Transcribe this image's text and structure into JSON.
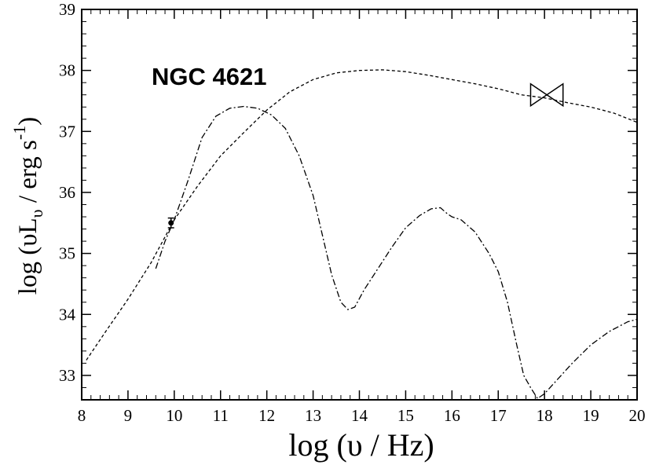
{
  "chart_data": {
    "type": "line",
    "title": "",
    "annotation": "NGC 4621",
    "xlabel": "log  (υ  / Hz)",
    "ylabel": {
      "prefix": "log  (υL",
      "sub": "υ",
      "middle": " / erg s",
      "sup": "-1",
      "suffix": ")"
    },
    "xlim": [
      8,
      20
    ],
    "ylim": [
      32.6,
      39
    ],
    "xticks": [
      8,
      9,
      10,
      11,
      12,
      13,
      14,
      15,
      16,
      17,
      18,
      19,
      20
    ],
    "yticks": [
      33,
      34,
      35,
      36,
      37,
      38,
      39
    ],
    "grid": false,
    "series": [
      {
        "style": "dashed",
        "x": [
          8.1,
          8.5,
          9.0,
          9.5,
          10.0,
          10.5,
          11.0,
          11.5,
          12.0,
          12.5,
          13.0,
          13.5,
          14.0,
          14.5,
          15.0,
          15.5,
          16.0,
          16.5,
          17.0,
          17.5,
          18.0,
          18.5,
          19.0,
          19.5,
          20.0
        ],
        "y": [
          33.25,
          33.7,
          34.25,
          34.85,
          35.55,
          36.1,
          36.6,
          36.98,
          37.35,
          37.65,
          37.85,
          37.96,
          38.0,
          38.01,
          37.98,
          37.92,
          37.85,
          37.78,
          37.7,
          37.6,
          37.55,
          37.47,
          37.4,
          37.3,
          37.15
        ]
      },
      {
        "style": "dash-dot",
        "x": [
          9.6,
          9.8,
          10.0,
          10.3,
          10.6,
          10.9,
          11.2,
          11.5,
          11.8,
          12.1,
          12.4,
          12.7,
          13.0,
          13.2,
          13.4,
          13.6,
          13.75,
          13.9,
          14.1,
          14.4,
          14.7,
          15.0,
          15.3,
          15.55,
          15.75,
          15.9,
          16.0,
          16.2,
          16.5,
          16.8,
          17.0,
          17.2,
          17.4,
          17.55,
          17.7,
          17.85,
          18.0,
          18.3,
          18.6,
          19.0,
          19.4,
          19.8,
          20.0
        ],
        "y": [
          34.75,
          35.2,
          35.55,
          36.2,
          36.9,
          37.25,
          37.38,
          37.41,
          37.38,
          37.27,
          37.05,
          36.6,
          35.95,
          35.3,
          34.65,
          34.2,
          34.08,
          34.12,
          34.4,
          34.75,
          35.1,
          35.42,
          35.62,
          35.73,
          35.75,
          35.65,
          35.6,
          35.55,
          35.35,
          35.0,
          34.7,
          34.2,
          33.5,
          33.0,
          32.8,
          32.62,
          32.7,
          32.95,
          33.2,
          33.5,
          33.72,
          33.88,
          33.92
        ]
      }
    ],
    "data_points": [
      {
        "x": 9.93,
        "y": 35.5,
        "yerr": 0.08
      }
    ],
    "bowtie": {
      "x_min": 17.7,
      "x_max": 18.4,
      "y_center": 37.6,
      "y_half_at_edge": 0.18
    }
  }
}
